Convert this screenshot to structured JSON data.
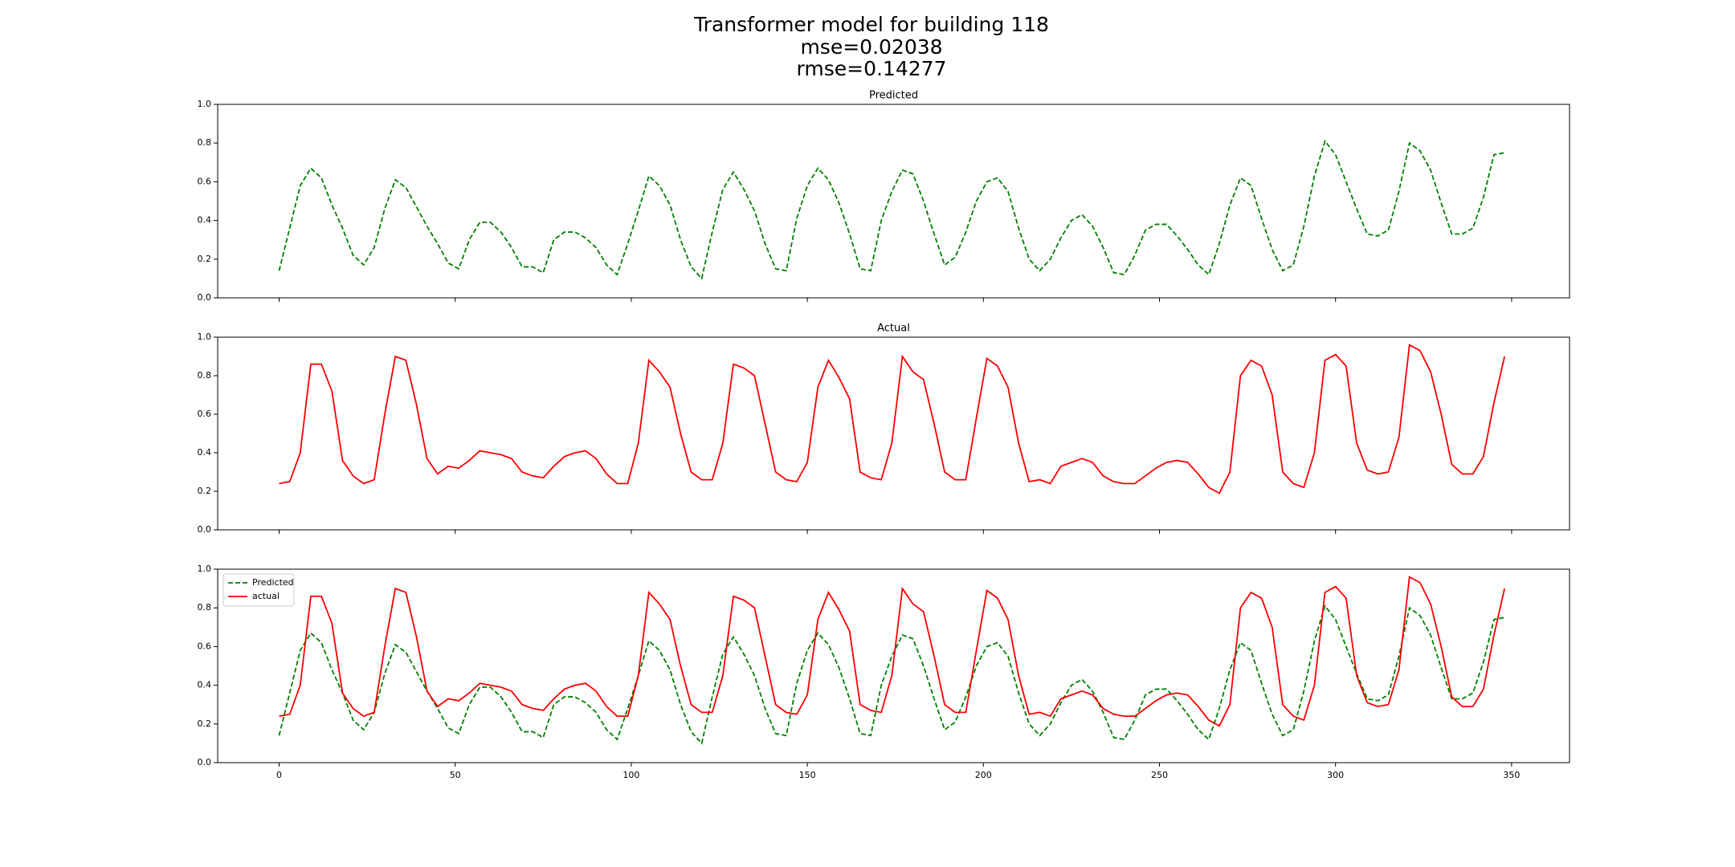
{
  "suptitle": [
    "Transformer model for building 118",
    "mse=0.02038",
    "rmse=0.14277"
  ],
  "chart_data": [
    {
      "type": "line",
      "title": "Predicted",
      "x": [
        0,
        3,
        6,
        9,
        12,
        15,
        18,
        21,
        24,
        27,
        30,
        33,
        36,
        39,
        42,
        45,
        48,
        51,
        54,
        57,
        60,
        63,
        66,
        69,
        72,
        75,
        78,
        81,
        84,
        87,
        90,
        93,
        96,
        99,
        102,
        105,
        108,
        111,
        114,
        117,
        120,
        123,
        126,
        129,
        132,
        135,
        138,
        141,
        144,
        147,
        150,
        153,
        156,
        159,
        162,
        165,
        168,
        171,
        174,
        177,
        180,
        183,
        186,
        189,
        192,
        195,
        198,
        201,
        204,
        207,
        210,
        213,
        216,
        219,
        222,
        225,
        228,
        231,
        234,
        237,
        240,
        243,
        246,
        249,
        252,
        255,
        258,
        261,
        264,
        267,
        270,
        273,
        276,
        279,
        282,
        285,
        288,
        291,
        294,
        297,
        300,
        303,
        306,
        309,
        312,
        315,
        318,
        321,
        324,
        327,
        330,
        333,
        336,
        339,
        342,
        345,
        348
      ],
      "series": [
        {
          "name": "Predicted",
          "color": "#008000",
          "linestyle": "dashed",
          "values": [
            0.14,
            0.36,
            0.58,
            0.67,
            0.62,
            0.48,
            0.36,
            0.22,
            0.17,
            0.26,
            0.46,
            0.61,
            0.57,
            0.47,
            0.37,
            0.28,
            0.18,
            0.15,
            0.3,
            0.39,
            0.39,
            0.34,
            0.26,
            0.16,
            0.16,
            0.13,
            0.3,
            0.34,
            0.34,
            0.31,
            0.26,
            0.17,
            0.12,
            0.28,
            0.45,
            0.63,
            0.58,
            0.48,
            0.3,
            0.16,
            0.1,
            0.34,
            0.56,
            0.65,
            0.56,
            0.45,
            0.28,
            0.15,
            0.14,
            0.41,
            0.58,
            0.67,
            0.61,
            0.49,
            0.33,
            0.15,
            0.14,
            0.4,
            0.55,
            0.66,
            0.64,
            0.5,
            0.33,
            0.17,
            0.21,
            0.34,
            0.5,
            0.6,
            0.62,
            0.55,
            0.36,
            0.2,
            0.14,
            0.2,
            0.31,
            0.4,
            0.43,
            0.37,
            0.26,
            0.13,
            0.12,
            0.22,
            0.35,
            0.38,
            0.38,
            0.32,
            0.25,
            0.17,
            0.12,
            0.28,
            0.48,
            0.62,
            0.58,
            0.41,
            0.25,
            0.14,
            0.17,
            0.37,
            0.63,
            0.81,
            0.74,
            0.6,
            0.46,
            0.33,
            0.32,
            0.35,
            0.55,
            0.8,
            0.76,
            0.66,
            0.49,
            0.33,
            0.33,
            0.36,
            0.52,
            0.74,
            0.75
          ]
        }
      ],
      "xlim": [
        -17.45,
        366.45
      ],
      "ylim": [
        0,
        1
      ],
      "yticks": [
        {
          "value": 0,
          "label": "0.0"
        },
        0.2,
        0.4,
        0.6,
        0.8,
        {
          "value": 1,
          "label": "1.0"
        }
      ]
    },
    {
      "type": "line",
      "title": "Actual",
      "x": [
        0,
        3,
        6,
        9,
        12,
        15,
        18,
        21,
        24,
        27,
        30,
        33,
        36,
        39,
        42,
        45,
        48,
        51,
        54,
        57,
        60,
        63,
        66,
        69,
        72,
        75,
        78,
        81,
        84,
        87,
        90,
        93,
        96,
        99,
        102,
        105,
        108,
        111,
        114,
        117,
        120,
        123,
        126,
        129,
        132,
        135,
        138,
        141,
        144,
        147,
        150,
        153,
        156,
        159,
        162,
        165,
        168,
        171,
        174,
        177,
        180,
        183,
        186,
        189,
        192,
        195,
        198,
        201,
        204,
        207,
        210,
        213,
        216,
        219,
        222,
        225,
        228,
        231,
        234,
        237,
        240,
        243,
        246,
        249,
        252,
        255,
        258,
        261,
        264,
        267,
        270,
        273,
        276,
        279,
        282,
        285,
        288,
        291,
        294,
        297,
        300,
        303,
        306,
        309,
        312,
        315,
        318,
        321,
        324,
        327,
        330,
        333,
        336,
        339,
        342,
        345,
        348
      ],
      "series": [
        {
          "name": "actual",
          "color": "#ff0000",
          "linestyle": "solid",
          "values": [
            0.24,
            0.25,
            0.4,
            0.86,
            0.86,
            0.72,
            0.36,
            0.28,
            0.24,
            0.26,
            0.6,
            0.9,
            0.88,
            0.65,
            0.37,
            0.29,
            0.33,
            0.32,
            0.36,
            0.41,
            0.4,
            0.39,
            0.37,
            0.3,
            0.28,
            0.27,
            0.33,
            0.38,
            0.4,
            0.41,
            0.37,
            0.29,
            0.24,
            0.24,
            0.45,
            0.88,
            0.82,
            0.74,
            0.5,
            0.3,
            0.26,
            0.26,
            0.45,
            0.86,
            0.84,
            0.8,
            0.55,
            0.3,
            0.26,
            0.25,
            0.35,
            0.74,
            0.88,
            0.79,
            0.68,
            0.3,
            0.27,
            0.26,
            0.45,
            0.9,
            0.82,
            0.78,
            0.55,
            0.3,
            0.26,
            0.26,
            0.58,
            0.89,
            0.85,
            0.74,
            0.45,
            0.25,
            0.26,
            0.24,
            0.33,
            0.35,
            0.37,
            0.35,
            0.28,
            0.25,
            0.24,
            0.24,
            0.28,
            0.32,
            0.35,
            0.36,
            0.35,
            0.29,
            0.22,
            0.19,
            0.3,
            0.8,
            0.88,
            0.85,
            0.7,
            0.3,
            0.24,
            0.22,
            0.4,
            0.88,
            0.91,
            0.85,
            0.45,
            0.31,
            0.29,
            0.3,
            0.48,
            0.96,
            0.93,
            0.82,
            0.6,
            0.34,
            0.29,
            0.29,
            0.38,
            0.66,
            0.9
          ]
        }
      ],
      "xlim": [
        -17.45,
        366.45
      ],
      "ylim": [
        0,
        1
      ],
      "yticks": [
        {
          "value": 0,
          "label": "0.0"
        },
        0.2,
        0.4,
        0.6,
        0.8,
        {
          "value": 1,
          "label": "1.0"
        }
      ]
    },
    {
      "type": "line",
      "x": [
        0,
        3,
        6,
        9,
        12,
        15,
        18,
        21,
        24,
        27,
        30,
        33,
        36,
        39,
        42,
        45,
        48,
        51,
        54,
        57,
        60,
        63,
        66,
        69,
        72,
        75,
        78,
        81,
        84,
        87,
        90,
        93,
        96,
        99,
        102,
        105,
        108,
        111,
        114,
        117,
        120,
        123,
        126,
        129,
        132,
        135,
        138,
        141,
        144,
        147,
        150,
        153,
        156,
        159,
        162,
        165,
        168,
        171,
        174,
        177,
        180,
        183,
        186,
        189,
        192,
        195,
        198,
        201,
        204,
        207,
        210,
        213,
        216,
        219,
        222,
        225,
        228,
        231,
        234,
        237,
        240,
        243,
        246,
        249,
        252,
        255,
        258,
        261,
        264,
        267,
        270,
        273,
        276,
        279,
        282,
        285,
        288,
        291,
        294,
        297,
        300,
        303,
        306,
        309,
        312,
        315,
        318,
        321,
        324,
        327,
        330,
        333,
        336,
        339,
        342,
        345,
        348
      ],
      "series": [
        {
          "name": "Predicted",
          "color": "#008000",
          "linestyle": "dashed",
          "values": [
            0.14,
            0.36,
            0.58,
            0.67,
            0.62,
            0.48,
            0.36,
            0.22,
            0.17,
            0.26,
            0.46,
            0.61,
            0.57,
            0.47,
            0.37,
            0.28,
            0.18,
            0.15,
            0.3,
            0.39,
            0.39,
            0.34,
            0.26,
            0.16,
            0.16,
            0.13,
            0.3,
            0.34,
            0.34,
            0.31,
            0.26,
            0.17,
            0.12,
            0.28,
            0.45,
            0.63,
            0.58,
            0.48,
            0.3,
            0.16,
            0.1,
            0.34,
            0.56,
            0.65,
            0.56,
            0.45,
            0.28,
            0.15,
            0.14,
            0.41,
            0.58,
            0.67,
            0.61,
            0.49,
            0.33,
            0.15,
            0.14,
            0.4,
            0.55,
            0.66,
            0.64,
            0.5,
            0.33,
            0.17,
            0.21,
            0.34,
            0.5,
            0.6,
            0.62,
            0.55,
            0.36,
            0.2,
            0.14,
            0.2,
            0.31,
            0.4,
            0.43,
            0.37,
            0.26,
            0.13,
            0.12,
            0.22,
            0.35,
            0.38,
            0.38,
            0.32,
            0.25,
            0.17,
            0.12,
            0.28,
            0.48,
            0.62,
            0.58,
            0.41,
            0.25,
            0.14,
            0.17,
            0.37,
            0.63,
            0.81,
            0.74,
            0.6,
            0.46,
            0.33,
            0.32,
            0.35,
            0.55,
            0.8,
            0.76,
            0.66,
            0.49,
            0.33,
            0.33,
            0.36,
            0.52,
            0.74,
            0.75
          ]
        },
        {
          "name": "actual",
          "color": "#ff0000",
          "linestyle": "solid",
          "values": [
            0.24,
            0.25,
            0.4,
            0.86,
            0.86,
            0.72,
            0.36,
            0.28,
            0.24,
            0.26,
            0.6,
            0.9,
            0.88,
            0.65,
            0.37,
            0.29,
            0.33,
            0.32,
            0.36,
            0.41,
            0.4,
            0.39,
            0.37,
            0.3,
            0.28,
            0.27,
            0.33,
            0.38,
            0.4,
            0.41,
            0.37,
            0.29,
            0.24,
            0.24,
            0.45,
            0.88,
            0.82,
            0.74,
            0.5,
            0.3,
            0.26,
            0.26,
            0.45,
            0.86,
            0.84,
            0.8,
            0.55,
            0.3,
            0.26,
            0.25,
            0.35,
            0.74,
            0.88,
            0.79,
            0.68,
            0.3,
            0.27,
            0.26,
            0.45,
            0.9,
            0.82,
            0.78,
            0.55,
            0.3,
            0.26,
            0.26,
            0.58,
            0.89,
            0.85,
            0.74,
            0.45,
            0.25,
            0.26,
            0.24,
            0.33,
            0.35,
            0.37,
            0.35,
            0.28,
            0.25,
            0.24,
            0.24,
            0.28,
            0.32,
            0.35,
            0.36,
            0.35,
            0.29,
            0.22,
            0.19,
            0.3,
            0.8,
            0.88,
            0.85,
            0.7,
            0.3,
            0.24,
            0.22,
            0.4,
            0.88,
            0.91,
            0.85,
            0.45,
            0.31,
            0.29,
            0.3,
            0.48,
            0.96,
            0.93,
            0.82,
            0.6,
            0.34,
            0.29,
            0.29,
            0.38,
            0.66,
            0.9
          ]
        }
      ],
      "xlim": [
        -17.45,
        366.45
      ],
      "ylim": [
        0,
        1
      ],
      "xticks": [
        0,
        50,
        100,
        150,
        200,
        250,
        300,
        350
      ],
      "yticks": [
        {
          "value": 0,
          "label": "0.0"
        },
        0.2,
        0.4,
        0.6,
        0.8,
        {
          "value": 1,
          "label": "1.0"
        }
      ],
      "legend": "upper left"
    }
  ]
}
